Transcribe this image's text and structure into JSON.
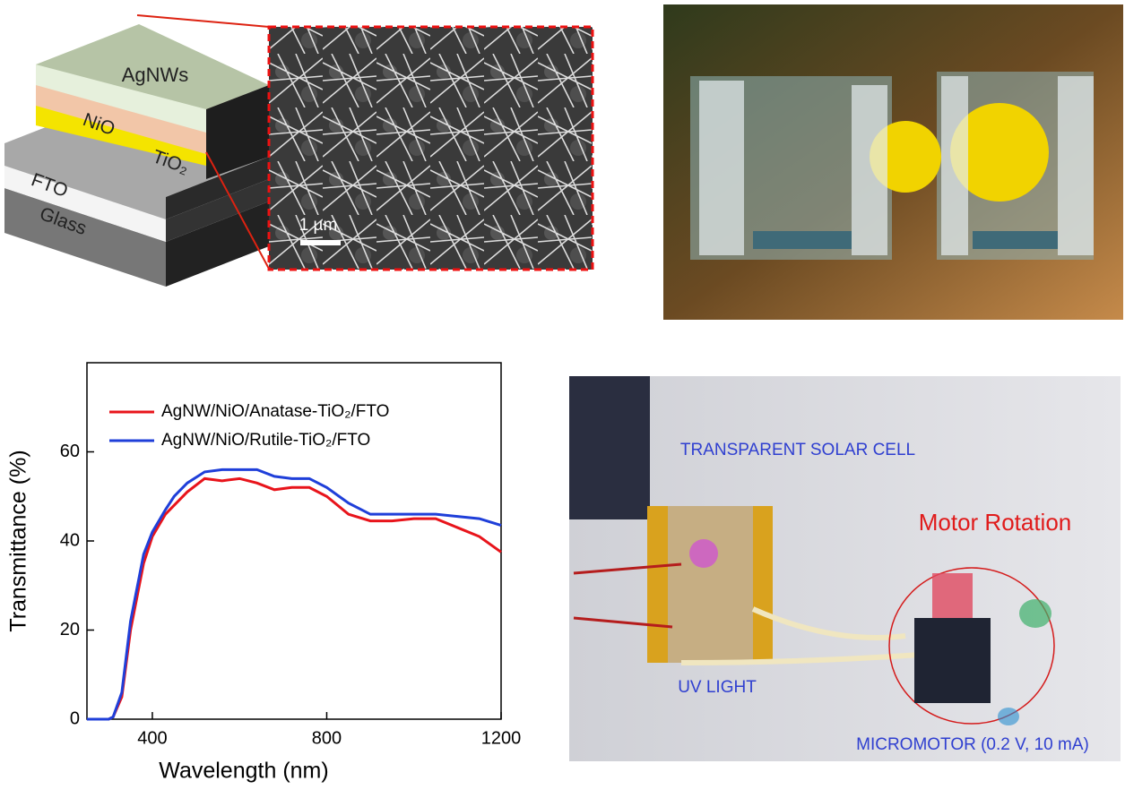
{
  "schematic": {
    "layers": [
      "AgNWs",
      "NiO",
      "TiO₂",
      "FTO",
      "Glass"
    ],
    "scale_bar": "1 µm"
  },
  "chart_data": {
    "type": "line",
    "x_label": "Wavelength (nm)",
    "y_label": "Transmittance (%)",
    "x": [
      250,
      300,
      310,
      330,
      350,
      380,
      400,
      430,
      450,
      480,
      520,
      560,
      600,
      640,
      680,
      720,
      760,
      800,
      850,
      900,
      950,
      1000,
      1050,
      1100,
      1150,
      1200
    ],
    "series": [
      {
        "name": "AgNW/NiO/Anatase-TiO₂/FTO",
        "color": "#e8141b",
        "values": [
          0,
          0,
          0.5,
          5,
          20,
          35,
          41,
          46,
          48,
          51,
          54,
          53.5,
          54,
          53,
          51.5,
          52,
          52,
          50,
          46,
          44.5,
          44.5,
          45,
          45,
          43,
          41,
          37.5
        ]
      },
      {
        "name": "AgNW/NiO/Rutile-TiO₂/FTO",
        "color": "#1f3fd9",
        "values": [
          0,
          0,
          0.5,
          6,
          22,
          37,
          42,
          47,
          50,
          53,
          55.5,
          56,
          56,
          56,
          54.5,
          54,
          54,
          52,
          48.5,
          46,
          46,
          46,
          46,
          45.5,
          45,
          43.5
        ]
      }
    ],
    "xlim": [
      250,
      1200
    ],
    "ylim": [
      0,
      80
    ],
    "xticks": [
      400,
      800,
      1200
    ],
    "yticks": [
      0,
      20,
      40,
      60
    ]
  },
  "demo_photo": {
    "cell_label": "TRANSPARENT SOLAR CELL",
    "rotation_label": "Motor  Rotation",
    "light_label": "UV LIGHT",
    "motor_label": "MICROMOTOR (0.2 V, 10 mA)"
  }
}
